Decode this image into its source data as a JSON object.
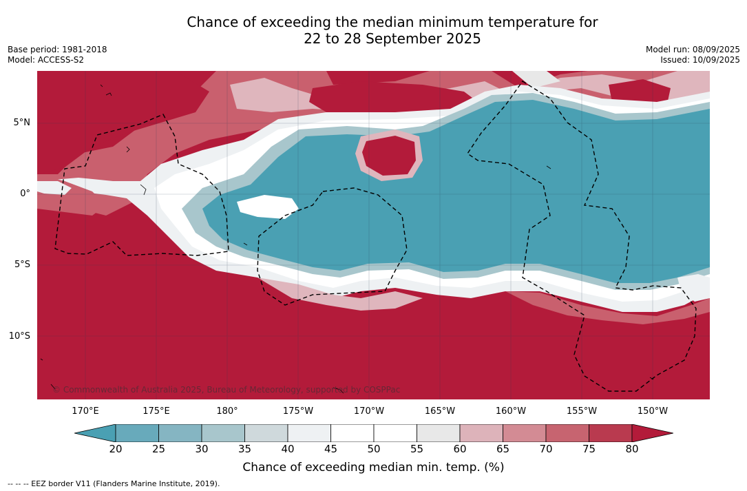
{
  "title_line1": "Chance of exceeding the median minimum temperature for",
  "title_line2": "22 to 28 September 2025",
  "meta": {
    "base_period": "Base period: 1981-2018",
    "model": "Model: ACCESS-S2",
    "model_run": "Model run: 08/09/2025",
    "issued": "Issued: 10/09/2025"
  },
  "map": {
    "copyright": "© Commonwealth of Australia 2025, Bureau of Meteorology, supported by COSPPac",
    "lat_labels": [
      "5°N",
      "0°",
      "5°S",
      "10°S"
    ],
    "lon_labels": [
      "170°E",
      "175°E",
      "180°",
      "175°W",
      "170°W",
      "165°W",
      "160°W",
      "155°W",
      "150°W"
    ]
  },
  "colorbar": {
    "ticks": [
      "20",
      "25",
      "30",
      "35",
      "40",
      "45",
      "50",
      "55",
      "60",
      "65",
      "70",
      "75",
      "80"
    ],
    "colors": [
      "#4aa0b3",
      "#68aabb",
      "#85b5c2",
      "#a8c6cc",
      "#cfd9dc",
      "#eef1f3",
      "#ffffff",
      "#ffffff",
      "#e8e8e8",
      "#ddb3ba",
      "#d38b94",
      "#c76470",
      "#b93a4f",
      "#b31b3a"
    ],
    "label": "Chance of exceeding median min. temp. (%)"
  },
  "footnote": "-- -- -- EEZ border V11 (Flanders Marine Institute, 2019).",
  "palette": {
    "high": "#b31b3a",
    "mid_high": "#c9606e",
    "pink": "#dfb6bd",
    "neutral": "#ffffff",
    "low": "#4aa0b3"
  }
}
